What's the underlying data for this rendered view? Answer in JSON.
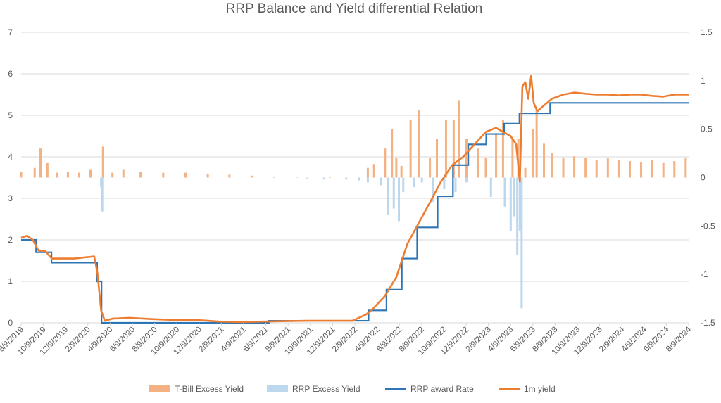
{
  "chart_data": {
    "type": "combo",
    "title": "RRP Balance and Yield differential Relation",
    "left_axis": {
      "min": 0,
      "max": 7,
      "ticks": [
        "0",
        "1",
        "2",
        "3",
        "4",
        "5",
        "6",
        "7"
      ]
    },
    "right_axis": {
      "min": -1.5,
      "max": 1.5,
      "ticks": [
        "-1.5",
        "-1",
        "-0.5",
        "0",
        "0.5",
        "1",
        "1.5"
      ]
    },
    "x_range": [
      "2019-08-09",
      "2024-08-09"
    ],
    "x_tick_labels": [
      "8/9/2019",
      "10/9/2019",
      "12/9/2019",
      "2/9/2020",
      "4/9/2020",
      "6/9/2020",
      "8/9/2020",
      "10/9/2020",
      "12/9/2020",
      "2/9/2021",
      "4/9/2021",
      "6/9/2021",
      "8/9/2021",
      "10/9/2021",
      "12/9/2021",
      "2/9/2022",
      "4/9/2022",
      "6/9/2022",
      "8/9/2022",
      "10/9/2022",
      "12/9/2022",
      "2/9/2023",
      "4/9/2023",
      "6/9/2023",
      "8/9/2023",
      "10/9/2023",
      "12/9/2023",
      "2/9/2024",
      "4/9/2024",
      "6/9/2024",
      "8/9/2024"
    ],
    "grid": true,
    "legend_position": "bottom",
    "series": [
      {
        "name": "T-Bill Excess Yield",
        "type": "bar",
        "axis": "right",
        "color": "#f4b183",
        "x": [
          "2019-08-09",
          "2019-09-15",
          "2019-10-01",
          "2019-10-20",
          "2019-11-15",
          "2019-12-15",
          "2020-01-15",
          "2020-02-15",
          "2020-03-20",
          "2020-04-15",
          "2020-05-15",
          "2020-07-01",
          "2020-09-01",
          "2020-11-01",
          "2021-01-01",
          "2021-03-01",
          "2021-05-01",
          "2021-07-01",
          "2021-09-01",
          "2021-12-01",
          "2022-03-15",
          "2022-04-01",
          "2022-05-01",
          "2022-05-20",
          "2022-06-01",
          "2022-06-15",
          "2022-07-10",
          "2022-08-01",
          "2022-09-01",
          "2022-09-20",
          "2022-10-15",
          "2022-11-05",
          "2022-11-20",
          "2022-12-10",
          "2023-01-10",
          "2023-02-01",
          "2023-03-01",
          "2023-03-20",
          "2023-04-15",
          "2023-05-01",
          "2023-05-20",
          "2023-06-10",
          "2023-06-20",
          "2023-07-10",
          "2023-08-01",
          "2023-09-01",
          "2023-10-01",
          "2023-11-01",
          "2023-12-01",
          "2024-01-01",
          "2024-02-01",
          "2024-03-01",
          "2024-04-01",
          "2024-05-01",
          "2024-06-01",
          "2024-07-01",
          "2024-08-01"
        ],
        "values": [
          0.06,
          0.1,
          0.3,
          0.15,
          0.05,
          0.06,
          0.05,
          0.08,
          0.32,
          0.05,
          0.08,
          0.06,
          0.05,
          0.05,
          0.04,
          0.03,
          0.02,
          0.01,
          0.01,
          0.01,
          0.1,
          0.14,
          0.3,
          0.5,
          0.2,
          0.12,
          0.6,
          0.7,
          0.2,
          0.4,
          0.6,
          0.6,
          0.8,
          0.4,
          0.3,
          0.2,
          0.45,
          0.6,
          0.4,
          0.4,
          0.1,
          0.5,
          0.7,
          0.35,
          0.25,
          0.2,
          0.22,
          0.2,
          0.18,
          0.2,
          0.18,
          0.17,
          0.16,
          0.18,
          0.15,
          0.17,
          0.2
        ]
      },
      {
        "name": "RRP Excess Yield",
        "type": "bar",
        "axis": "right",
        "color": "#bdd7ee",
        "x": [
          "2020-03-15",
          "2020-03-18",
          "2021-10-01",
          "2021-11-15",
          "2022-01-15",
          "2022-02-20",
          "2022-03-15",
          "2022-04-20",
          "2022-05-10",
          "2022-05-25",
          "2022-06-08",
          "2022-06-20",
          "2022-07-20",
          "2022-08-10",
          "2022-09-10",
          "2022-10-10",
          "2022-11-10",
          "2022-12-10",
          "2023-02-15",
          "2023-03-25",
          "2023-04-10",
          "2023-04-20",
          "2023-04-28",
          "2023-05-05",
          "2023-05-10"
        ],
        "values": [
          -0.1,
          -0.35,
          -0.01,
          -0.02,
          -0.02,
          -0.03,
          -0.05,
          -0.08,
          -0.38,
          -0.32,
          -0.45,
          -0.15,
          -0.1,
          -0.05,
          -0.25,
          -0.12,
          -0.15,
          -0.05,
          -0.2,
          -0.3,
          -0.55,
          -0.4,
          -0.8,
          -0.55,
          -1.35
        ]
      },
      {
        "name": "RRP award Rate",
        "type": "step",
        "axis": "left",
        "color": "#2e75b6",
        "x": [
          "2019-08-09",
          "2019-09-19",
          "2019-10-31",
          "2020-03-04",
          "2020-03-16",
          "2021-06-17",
          "2022-03-17",
          "2022-05-05",
          "2022-06-16",
          "2022-07-28",
          "2022-09-22",
          "2022-11-03",
          "2022-12-15",
          "2023-02-02",
          "2023-03-23",
          "2023-05-04",
          "2023-07-27",
          "2024-08-09"
        ],
        "values": [
          2.0,
          1.7,
          1.45,
          1.0,
          0.0,
          0.05,
          0.3,
          0.8,
          1.55,
          2.3,
          3.05,
          3.8,
          4.3,
          4.55,
          4.8,
          5.05,
          5.3,
          5.3
        ]
      },
      {
        "name": "1m yield",
        "type": "line",
        "axis": "left",
        "color": "#ed7d31",
        "x": [
          "2019-08-09",
          "2019-08-25",
          "2019-09-10",
          "2019-09-25",
          "2019-10-15",
          "2019-11-01",
          "2019-12-01",
          "2020-01-01",
          "2020-02-01",
          "2020-02-25",
          "2020-03-05",
          "2020-03-15",
          "2020-03-25",
          "2020-04-15",
          "2020-06-01",
          "2020-08-01",
          "2020-10-01",
          "2020-12-01",
          "2021-02-01",
          "2021-04-01",
          "2021-06-01",
          "2021-08-01",
          "2021-10-01",
          "2021-12-01",
          "2022-02-01",
          "2022-03-10",
          "2022-03-25",
          "2022-05-01",
          "2022-06-01",
          "2022-07-01",
          "2022-08-01",
          "2022-09-01",
          "2022-10-01",
          "2022-11-01",
          "2022-12-01",
          "2023-01-01",
          "2023-02-01",
          "2023-03-01",
          "2023-03-20",
          "2023-04-10",
          "2023-04-25",
          "2023-05-05",
          "2023-05-12",
          "2023-05-20",
          "2023-05-28",
          "2023-06-05",
          "2023-06-12",
          "2023-06-22",
          "2023-07-05",
          "2023-08-01",
          "2023-09-01",
          "2023-10-01",
          "2023-11-01",
          "2023-12-01",
          "2024-01-01",
          "2024-02-01",
          "2024-03-01",
          "2024-04-01",
          "2024-05-01",
          "2024-06-01",
          "2024-07-01",
          "2024-08-09"
        ],
        "values": [
          2.05,
          2.1,
          2.0,
          1.75,
          1.72,
          1.55,
          1.55,
          1.55,
          1.58,
          1.6,
          1.2,
          0.3,
          0.05,
          0.1,
          0.12,
          0.09,
          0.07,
          0.07,
          0.03,
          0.02,
          0.03,
          0.04,
          0.05,
          0.05,
          0.05,
          0.2,
          0.3,
          0.65,
          1.1,
          1.9,
          2.4,
          2.9,
          3.4,
          3.8,
          4.0,
          4.3,
          4.6,
          4.7,
          4.6,
          4.5,
          4.3,
          3.4,
          5.7,
          5.8,
          5.4,
          5.95,
          5.3,
          5.1,
          5.2,
          5.4,
          5.5,
          5.55,
          5.52,
          5.5,
          5.5,
          5.48,
          5.5,
          5.5,
          5.47,
          5.45,
          5.5,
          5.5
        ]
      }
    ]
  }
}
